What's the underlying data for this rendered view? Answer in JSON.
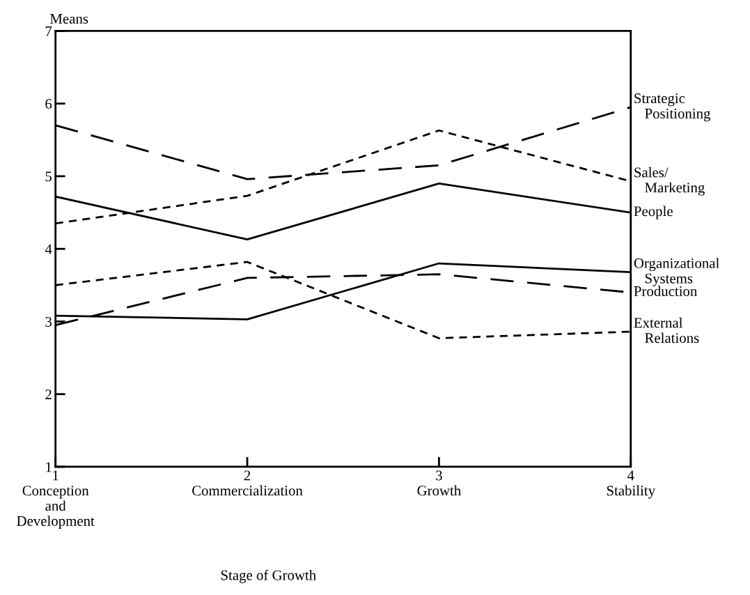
{
  "chart_data": {
    "type": "line",
    "ylabel": "Means",
    "xlabel": "Stage of Growth",
    "x": [
      1,
      2,
      3,
      4
    ],
    "xlim": [
      1,
      4
    ],
    "xticks": [
      {
        "value": 1,
        "label": "1\nConception\nand\nDevelopment"
      },
      {
        "value": 2,
        "label": "2\nCommercialization"
      },
      {
        "value": 3,
        "label": "3\nGrowth"
      },
      {
        "value": 4,
        "label": "4\nStability"
      }
    ],
    "ylim": [
      1,
      7
    ],
    "yticks": [
      1,
      2,
      3,
      4,
      5,
      6,
      7
    ],
    "grid": false,
    "legend": false,
    "marker": "none",
    "series": [
      {
        "name": "Strategic\n   Positioning",
        "color": "#000000",
        "line_style": "dashed",
        "values": [
          5.7,
          4.96,
          5.15,
          5.95
        ]
      },
      {
        "name": "Sales/\n   Marketing",
        "color": "#000000",
        "line_style": "dotted",
        "values": [
          4.35,
          4.73,
          5.63,
          4.93
        ]
      },
      {
        "name": "People",
        "color": "#000000",
        "line_style": "solid",
        "values": [
          4.72,
          4.13,
          4.9,
          4.5
        ]
      },
      {
        "name": "Organizational\n   Systems",
        "color": "#000000",
        "line_style": "solid",
        "values": [
          3.08,
          3.03,
          3.8,
          3.68
        ]
      },
      {
        "name": "Production",
        "color": "#000000",
        "line_style": "dashed",
        "values": [
          2.95,
          3.6,
          3.65,
          3.4
        ]
      },
      {
        "name": "External\n   Relations",
        "color": "#000000",
        "line_style": "dotted",
        "values": [
          3.5,
          3.82,
          2.77,
          2.86
        ]
      }
    ]
  }
}
